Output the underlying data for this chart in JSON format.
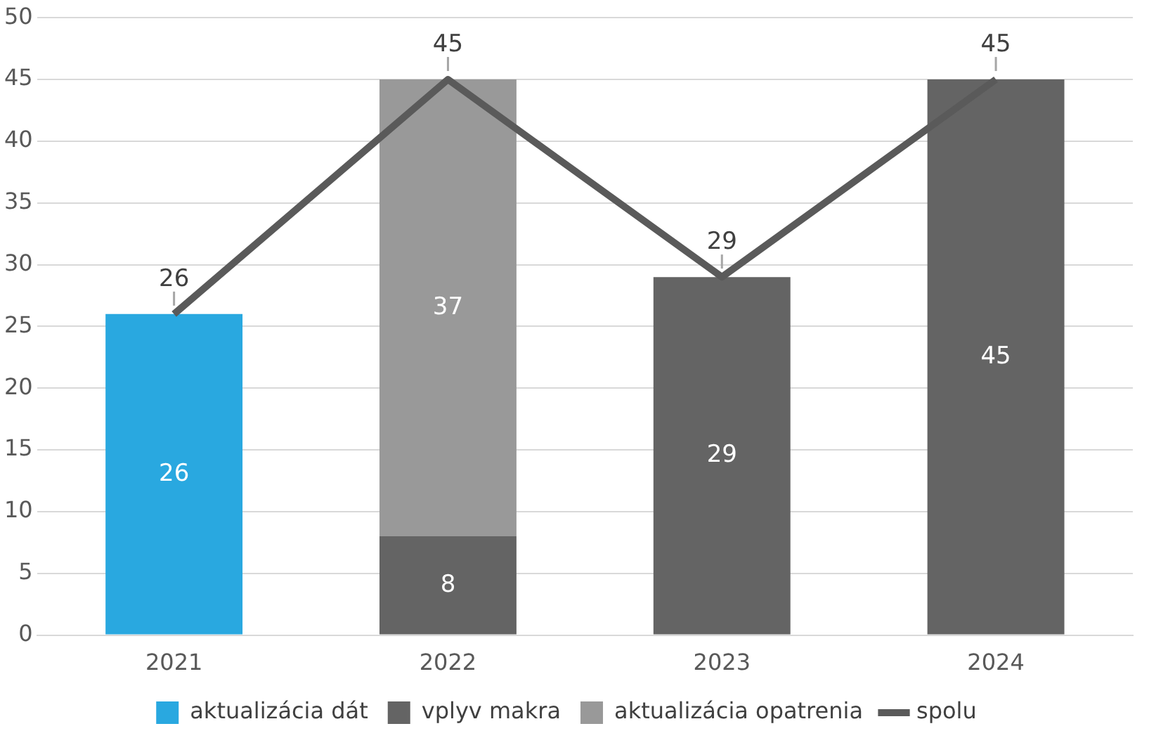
{
  "chart_data": {
    "type": "bar",
    "stacked": true,
    "categories": [
      "2021",
      "2022",
      "2023",
      "2024"
    ],
    "series": [
      {
        "name": "aktualizácia dát",
        "color": "#29a8e0",
        "values": [
          26,
          null,
          null,
          null
        ],
        "value_labels": [
          "26",
          null,
          null,
          null
        ]
      },
      {
        "name": "vplyv makra",
        "color": "#646464",
        "values": [
          null,
          8,
          29,
          45
        ],
        "value_labels": [
          null,
          "8",
          "29",
          "45"
        ]
      },
      {
        "name": "aktualizácia opatrenia",
        "color": "#999999",
        "values": [
          null,
          37,
          null,
          null
        ],
        "value_labels": [
          null,
          "37",
          null,
          null
        ]
      },
      {
        "name": "spolu",
        "type": "line",
        "color": "#5a5a5a",
        "values": [
          26,
          45,
          29,
          45
        ],
        "value_labels": [
          "26",
          "45",
          "29",
          "45"
        ],
        "marker": "none",
        "line_style": "solid"
      }
    ],
    "ylim": [
      0,
      50
    ],
    "yticks": [
      0,
      5,
      10,
      15,
      20,
      25,
      30,
      35,
      40,
      45,
      50
    ],
    "grid": "y",
    "legend": "bottom"
  }
}
